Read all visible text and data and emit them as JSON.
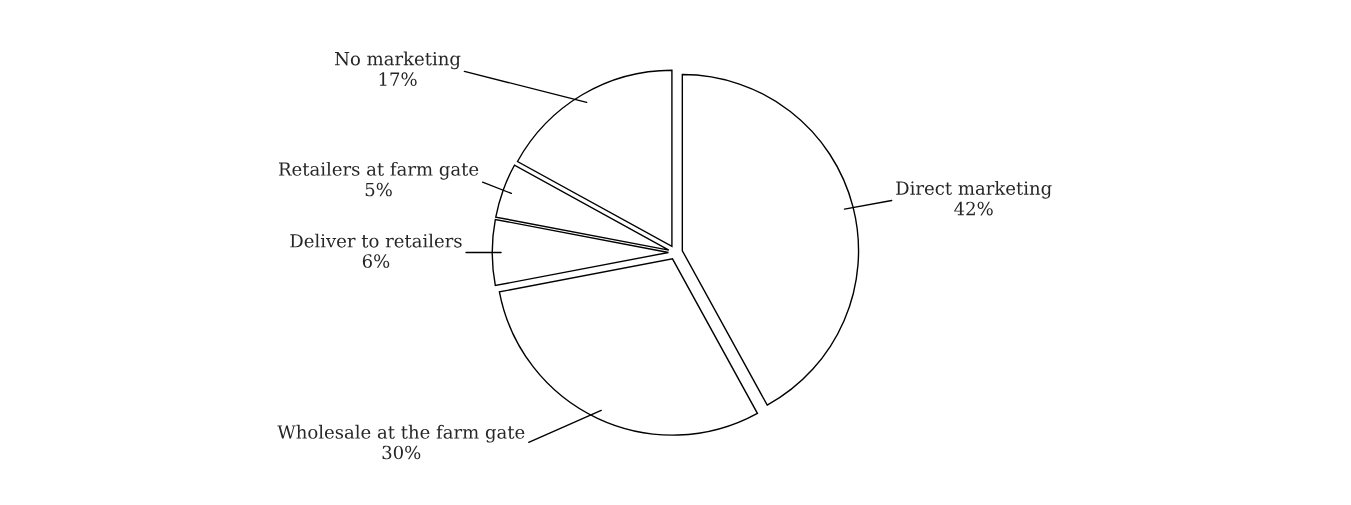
{
  "chart_data": {
    "type": "pie",
    "categories": [
      "Direct marketing",
      "Wholesale at the farm gate",
      "Deliver to retailers",
      "Retailers at farm gate",
      "No marketing"
    ],
    "values": [
      42,
      30,
      6,
      5,
      17
    ],
    "value_labels": [
      "42%",
      "30%",
      "6%",
      "5%",
      "17%"
    ],
    "colors": [
      "#ffffff",
      "#ffffff",
      "#ffffff",
      "#ffffff",
      "#ffffff"
    ],
    "legend": false
  }
}
